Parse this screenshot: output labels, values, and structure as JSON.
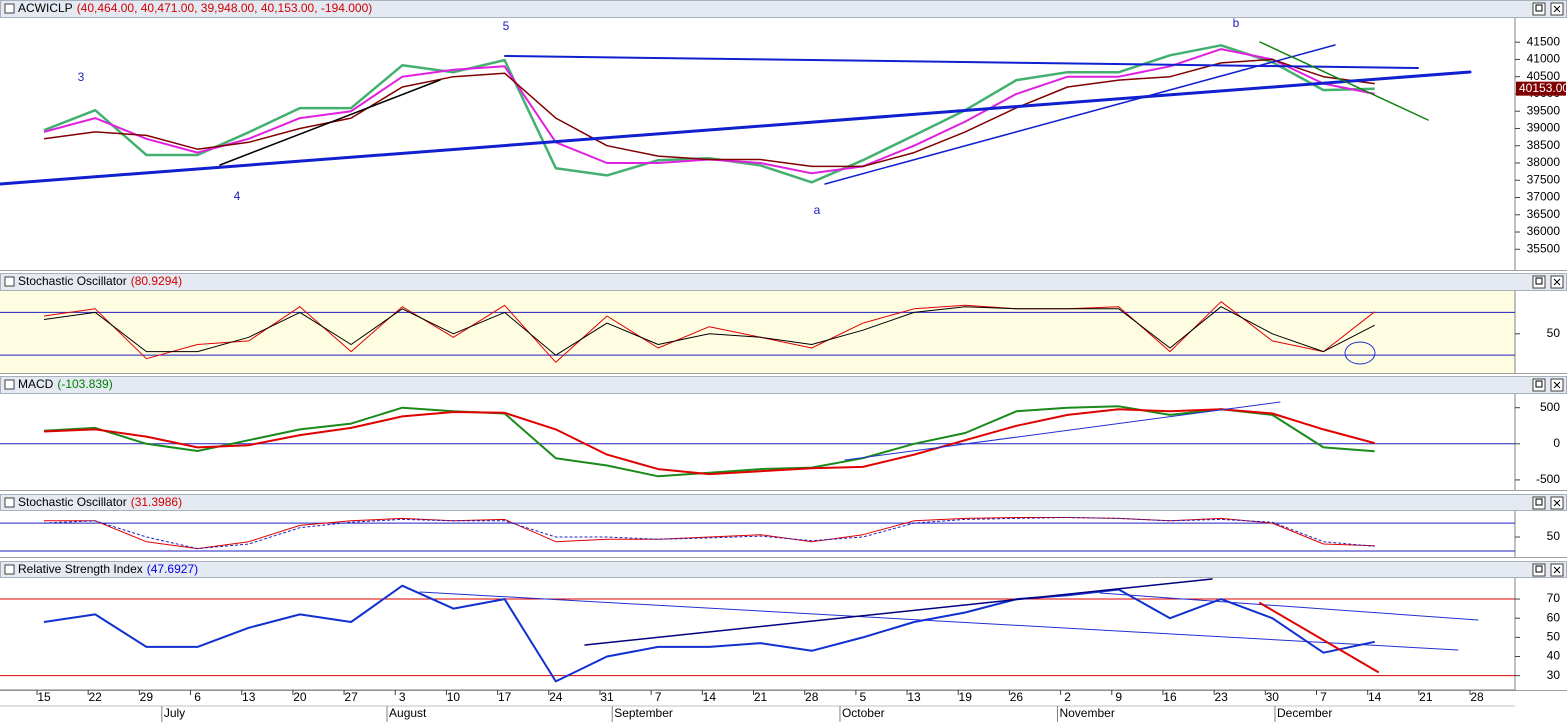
{
  "chart_data": [
    {
      "type": "line",
      "title": "ACWICLP",
      "readout": "(40,464.00, 40,471.00, 39,948.00, 40,153.00, -194.000)",
      "readout_color": "#d00000",
      "categories": [
        "15",
        "22",
        "29",
        "6",
        "13",
        "20",
        "27",
        "3",
        "10",
        "17",
        "24",
        "31",
        "7",
        "14",
        "21",
        "28",
        "5",
        "13",
        "19",
        "26",
        "2",
        "9",
        "16",
        "23",
        "30",
        "7",
        "14",
        "21",
        "28"
      ],
      "months": [
        "July",
        "August",
        "September",
        "October",
        "November",
        "December"
      ],
      "ylim": [
        34900,
        42200
      ],
      "yticks": [
        35500,
        36000,
        36500,
        37000,
        37500,
        38000,
        38500,
        39000,
        39500,
        40000,
        40500,
        41000,
        41500
      ],
      "last_label": "40153.00",
      "annotations": [
        "3",
        "4",
        "5",
        "a",
        "b"
      ],
      "series": [
        {
          "color": "#44b070",
          "width": 2.5,
          "values": [
            38950,
            39530,
            38230,
            38230,
            38890,
            39590,
            39590,
            40830,
            40630,
            40980,
            37850,
            37640,
            38080,
            38140,
            37930,
            37440,
            38080,
            38800,
            39530,
            40400,
            40630,
            40630,
            41120,
            41410,
            40920,
            40110,
            40153,
            null,
            null
          ]
        },
        {
          "color": "#e020e0",
          "width": 2,
          "values": [
            38900,
            39300,
            38700,
            38300,
            38700,
            39300,
            39500,
            40500,
            40700,
            40800,
            38600,
            38000,
            38000,
            38100,
            38000,
            37700,
            37900,
            38500,
            39200,
            40000,
            40500,
            40500,
            40800,
            41300,
            41000,
            40300,
            40000,
            null,
            null
          ]
        },
        {
          "color": "#800000",
          "width": 1.5,
          "values": [
            38700,
            38900,
            38800,
            38400,
            38600,
            39000,
            39300,
            40200,
            40500,
            40600,
            39300,
            38500,
            38200,
            38100,
            38100,
            37900,
            37900,
            38300,
            38900,
            39600,
            40200,
            40400,
            40500,
            40900,
            41000,
            40500,
            40300,
            null,
            null
          ]
        }
      ]
    },
    {
      "type": "line",
      "title": "Stochastic Oscillator",
      "readout": "(80.9294)",
      "readout_color": "#d00000",
      "background": "#fffde1",
      "ylim": [
        -5,
        110
      ],
      "yticks": [
        50
      ],
      "hlines": [
        20,
        80
      ],
      "series": [
        {
          "color": "#e00000",
          "width": 1,
          "values": [
            75,
            85,
            15,
            35,
            40,
            88,
            25,
            88,
            45,
            90,
            10,
            75,
            30,
            60,
            45,
            30,
            65,
            85,
            90,
            85,
            85,
            88,
            25,
            95,
            40,
            25,
            80.9294,
            null,
            null
          ]
        },
        {
          "color": "#000000",
          "width": 1,
          "values": [
            70,
            80,
            25,
            25,
            45,
            80,
            35,
            85,
            50,
            80,
            20,
            65,
            35,
            50,
            45,
            35,
            55,
            80,
            88,
            85,
            85,
            85,
            30,
            88,
            50,
            25,
            62,
            null,
            null
          ]
        }
      ]
    },
    {
      "type": "line",
      "title": "MACD",
      "readout": "(-103.839)",
      "readout_color": "#008000",
      "ylim": [
        -640,
        690
      ],
      "yticks": [
        -500,
        0,
        500
      ],
      "hlines": [
        0
      ],
      "series": [
        {
          "color": "#1a8a1a",
          "width": 2,
          "values": [
            180,
            220,
            0,
            -100,
            50,
            200,
            280,
            500,
            450,
            420,
            -200,
            -300,
            -450,
            -400,
            -350,
            -330,
            -200,
            0,
            150,
            450,
            500,
            520,
            400,
            480,
            400,
            -50,
            -103.839,
            null,
            null
          ]
        },
        {
          "color": "#e00000",
          "width": 2,
          "values": [
            170,
            200,
            100,
            -50,
            -20,
            120,
            220,
            380,
            440,
            430,
            200,
            -150,
            -350,
            -420,
            -380,
            -340,
            -320,
            -150,
            50,
            250,
            400,
            480,
            450,
            480,
            420,
            200,
            10,
            null,
            null
          ]
        }
      ]
    },
    {
      "type": "line",
      "title": "Stochastic Oscillator",
      "readout": "(31.3986)",
      "readout_color": "#d00000",
      "ylim": [
        7,
        106
      ],
      "yticks": [
        50
      ],
      "hlines": [
        20,
        80
      ],
      "series": [
        {
          "color": "#e00000",
          "width": 1,
          "values": [
            85,
            85,
            40,
            25,
            40,
            75,
            85,
            90,
            85,
            88,
            40,
            45,
            45,
            50,
            55,
            40,
            55,
            85,
            90,
            92,
            92,
            90,
            85,
            90,
            80,
            35,
            31.3986,
            null,
            null
          ]
        },
        {
          "color": "#2020c0",
          "width": 1,
          "dash": true,
          "values": [
            80,
            85,
            50,
            25,
            35,
            70,
            82,
            88,
            85,
            85,
            50,
            50,
            45,
            48,
            52,
            42,
            50,
            80,
            88,
            90,
            92,
            90,
            85,
            88,
            82,
            40,
            30,
            null,
            null
          ]
        }
      ]
    },
    {
      "type": "line",
      "title": "Relative Strength Index",
      "readout": "(47.6927)",
      "readout_color": "#0000e0",
      "ylim": [
        22.5,
        81
      ],
      "yticks": [
        30,
        40,
        50,
        60,
        70
      ],
      "hlines": [
        30,
        70
      ],
      "series": [
        {
          "color": "#1030d0",
          "width": 2,
          "values": [
            58,
            62,
            45,
            45,
            55,
            62,
            58,
            77,
            65,
            70,
            27,
            40,
            45,
            45,
            47,
            43,
            50,
            58,
            63,
            70,
            72,
            75,
            60,
            70,
            60,
            42,
            47.6927,
            null,
            null
          ]
        }
      ]
    }
  ]
}
